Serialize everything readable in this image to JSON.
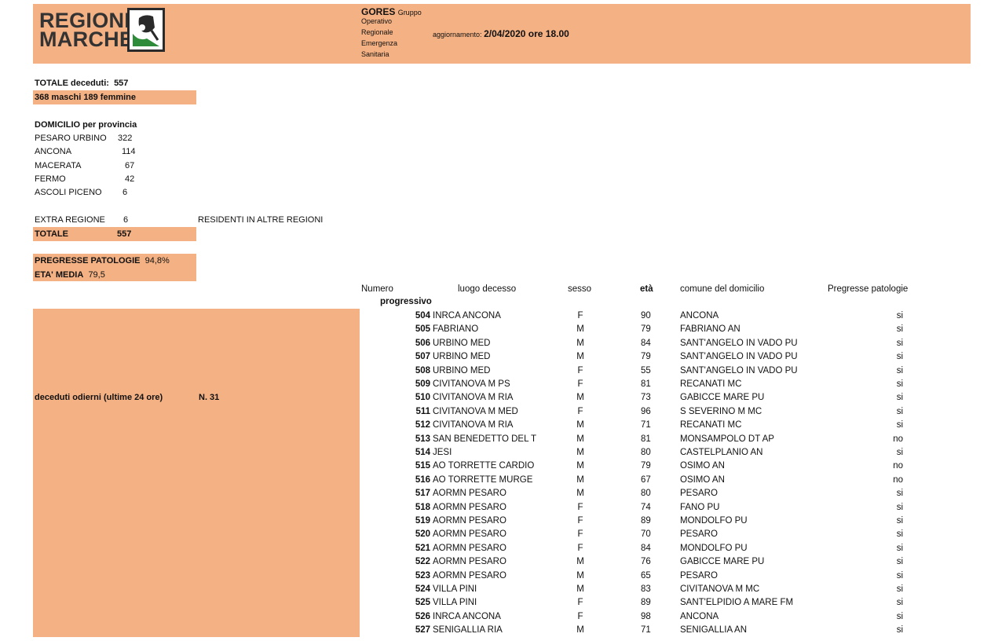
{
  "header": {
    "logo_line1": "REGIONE",
    "logo_line2": "MARCHE",
    "gores": "GORES",
    "gores_word": "Gruppo",
    "gores_lines": [
      "Operativo",
      "Regionale",
      "Emergenza",
      "Sanitaria"
    ],
    "update_label": "aggiornamento:",
    "update_value": "2/04/2020 ore 18.00"
  },
  "summary": {
    "total_label": "TOTALE deceduti:",
    "total_value": "557",
    "sex_split": "368 maschi  189 femmine",
    "domicile_title": "DOMICILIO per provincia",
    "provinces": [
      {
        "name": "PESARO  URBINO",
        "value": "322"
      },
      {
        "name": "ANCONA",
        "value": "114"
      },
      {
        "name": "MACERATA",
        "value": "67"
      },
      {
        "name": "FERMO",
        "value": "42"
      },
      {
        "name": "ASCOLI PICENO",
        "value": "6"
      }
    ],
    "extra_label": "EXTRA REGIONE",
    "extra_value": "6",
    "extra_note": "RESIDENTI IN ALTRE REGIONI",
    "totale_label": "TOTALE",
    "totale_value": "557",
    "patologie_label": "PREGRESSE PATOLOGIE",
    "patologie_value": "94,8%",
    "eta_label": "ETA' MEDIA",
    "eta_value": "79,5",
    "today_label": "deceduti odierni (ultime 24 ore)",
    "today_value": "N. 31"
  },
  "table": {
    "headers": {
      "numero": "Numero",
      "progressivo": "progressivo",
      "luogo": "luogo decesso",
      "sesso": "sesso",
      "eta": "età",
      "comune": "comune del domicilio",
      "patologie": "Pregresse patologie"
    },
    "rows": [
      {
        "n": "504",
        "luogo": "INRCA ANCONA",
        "sesso": "F",
        "eta": "90",
        "comune": "ANCONA",
        "pat": "si"
      },
      {
        "n": "505",
        "luogo": "FABRIANO",
        "sesso": "M",
        "eta": "79",
        "comune": "FABRIANO AN",
        "pat": "si"
      },
      {
        "n": "506",
        "luogo": "URBINO MED",
        "sesso": "M",
        "eta": "84",
        "comune": "SANT'ANGELO IN VADO PU",
        "pat": "si"
      },
      {
        "n": "507",
        "luogo": "URBINO MED",
        "sesso": "M",
        "eta": "79",
        "comune": "SANT'ANGELO IN VADO PU",
        "pat": "si"
      },
      {
        "n": "508",
        "luogo": "URBINO MED",
        "sesso": "F",
        "eta": "55",
        "comune": "SANT'ANGELO IN VADO PU",
        "pat": "si"
      },
      {
        "n": "509",
        "luogo": "CIVITANOVA M PS",
        "sesso": "F",
        "eta": "81",
        "comune": "RECANATI MC",
        "pat": "si"
      },
      {
        "n": "510",
        "luogo": "CIVITANOVA M RIA",
        "sesso": "M",
        "eta": "73",
        "comune": "GABICCE MARE PU",
        "pat": "si"
      },
      {
        "n": "511",
        "luogo": "CIVITANOVA M MED",
        "sesso": "F",
        "eta": "96",
        "comune": "S SEVERINO M MC",
        "pat": "si"
      },
      {
        "n": "512",
        "luogo": "CIVITANOVA M RIA",
        "sesso": "M",
        "eta": "71",
        "comune": "RECANATI MC",
        "pat": "si"
      },
      {
        "n": "513",
        "luogo": "SAN BENEDETTO DEL T",
        "sesso": "M",
        "eta": "81",
        "comune": "MONSAMPOLO DT  AP",
        "pat": "no"
      },
      {
        "n": "514",
        "luogo": "JESI",
        "sesso": "M",
        "eta": "80",
        "comune": "CASTELPLANIO AN",
        "pat": "si"
      },
      {
        "n": "515",
        "luogo": "AO TORRETTE CARDIO",
        "sesso": "M",
        "eta": "79",
        "comune": "OSIMO AN",
        "pat": "no"
      },
      {
        "n": "516",
        "luogo": "AO TORRETTE MURGE",
        "sesso": "M",
        "eta": "67",
        "comune": "OSIMO AN",
        "pat": "no"
      },
      {
        "n": "517",
        "luogo": "AORMN PESARO",
        "sesso": "M",
        "eta": "80",
        "comune": "PESARO",
        "pat": "si"
      },
      {
        "n": "518",
        "luogo": "AORMN PESARO",
        "sesso": "F",
        "eta": "74",
        "comune": "FANO PU",
        "pat": "si"
      },
      {
        "n": "519",
        "luogo": "AORMN PESARO",
        "sesso": "F",
        "eta": "89",
        "comune": "MONDOLFO PU",
        "pat": "si"
      },
      {
        "n": "520",
        "luogo": "AORMN PESARO",
        "sesso": "F",
        "eta": "70",
        "comune": "PESARO",
        "pat": "si"
      },
      {
        "n": "521",
        "luogo": "AORMN PESARO",
        "sesso": "F",
        "eta": "84",
        "comune": "MONDOLFO PU",
        "pat": "si"
      },
      {
        "n": "522",
        "luogo": "AORMN PESARO",
        "sesso": "M",
        "eta": "76",
        "comune": "GABICCE MARE  PU",
        "pat": "si"
      },
      {
        "n": "523",
        "luogo": "AORMN PESARO",
        "sesso": "M",
        "eta": "65",
        "comune": "PESARO",
        "pat": "si"
      },
      {
        "n": "524",
        "luogo": "VILLA PINI",
        "sesso": "M",
        "eta": "83",
        "comune": "CIVITANOVA M MC",
        "pat": "si"
      },
      {
        "n": "525",
        "luogo": "VILLA PINI",
        "sesso": "F",
        "eta": "89",
        "comune": "SANT'ELPIDIO A MARE FM",
        "pat": "si"
      },
      {
        "n": "526",
        "luogo": "INRCA ANCONA",
        "sesso": "F",
        "eta": "98",
        "comune": "ANCONA",
        "pat": "si"
      },
      {
        "n": "527",
        "luogo": "SENIGALLIA RIA",
        "sesso": "M",
        "eta": "71",
        "comune": "SENIGALLIA AN",
        "pat": "si"
      }
    ]
  }
}
